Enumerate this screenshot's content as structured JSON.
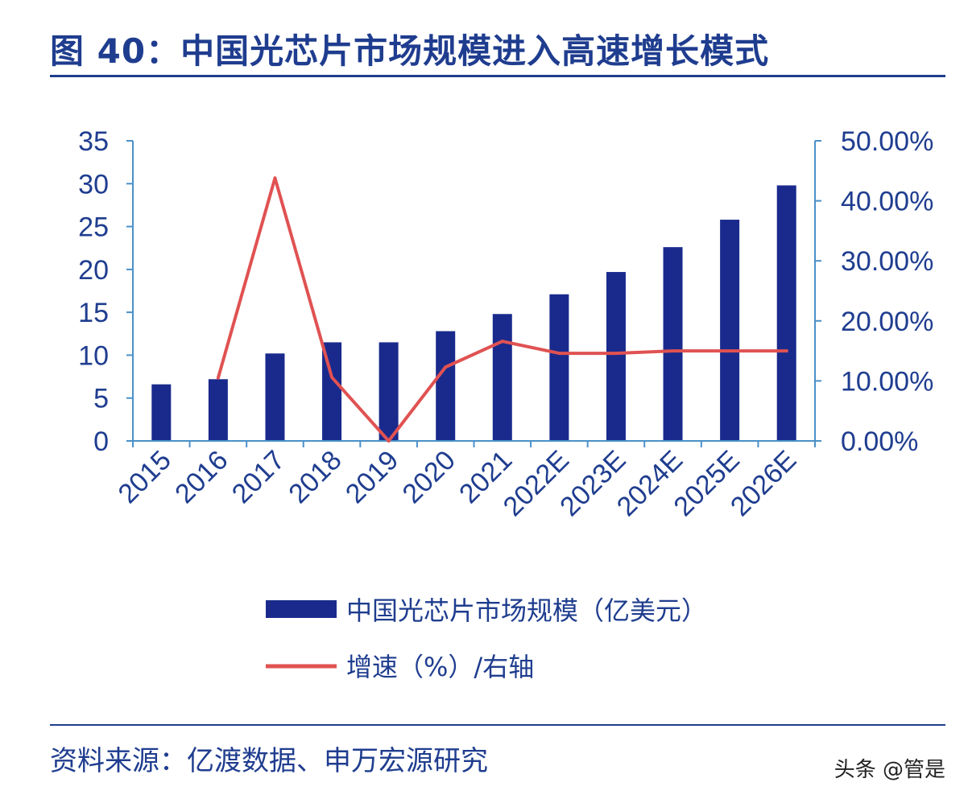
{
  "title": "图 40：中国光芯片市场规模进入高速增长模式",
  "source": "资料来源：亿渡数据、申万宏源研究",
  "watermark": "头条 @管是",
  "colors": {
    "bar": "#1a2a8c",
    "line": "#e05252",
    "axis": "#4a90c8",
    "text": "#1f3d8f"
  },
  "chart_data": {
    "type": "bar",
    "categories": [
      "2015",
      "2016",
      "2017",
      "2018",
      "2019",
      "2020",
      "2021",
      "2022E",
      "2023E",
      "2024E",
      "2025E",
      "2026E"
    ],
    "series": [
      {
        "name": "中国光芯片市场规模（亿美元）",
        "type": "bar",
        "axis": "left",
        "values": [
          6.6,
          7.2,
          10.2,
          11.5,
          11.5,
          12.8,
          14.8,
          17.1,
          19.7,
          22.6,
          25.8,
          29.8
        ]
      },
      {
        "name": "增速（%）/右轴",
        "type": "line",
        "axis": "right",
        "values": [
          null,
          10.5,
          43.8,
          10.6,
          0.0,
          12.3,
          16.6,
          14.6,
          14.6,
          15.0,
          15.0,
          15.0
        ]
      }
    ],
    "y_left": {
      "lim": [
        0,
        35
      ],
      "ticks": [
        "0",
        "5",
        "10",
        "15",
        "20",
        "25",
        "30",
        "35"
      ]
    },
    "y_right": {
      "lim": [
        0,
        50
      ],
      "ticks": [
        "0.00%",
        "10.00%",
        "20.00%",
        "30.00%",
        "40.00%",
        "50.00%"
      ]
    },
    "grid": false,
    "legend_position": "bottom"
  }
}
